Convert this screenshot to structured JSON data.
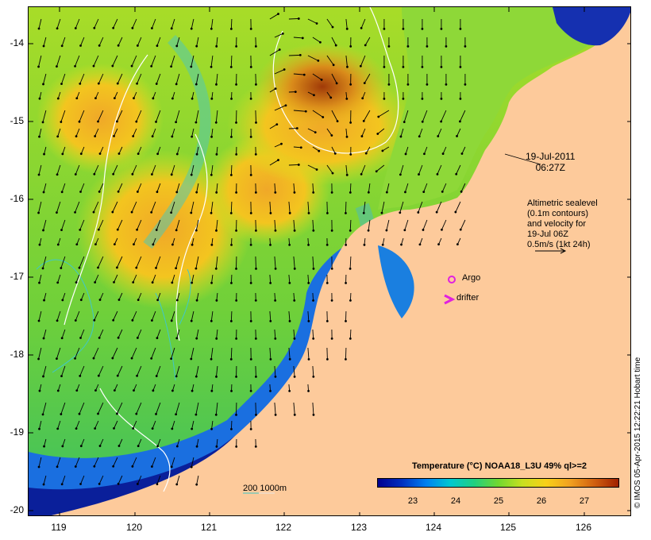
{
  "map": {
    "date": "19-Jul-2011",
    "time": "06:27Z",
    "legend_text": [
      "Altimetric sealevel",
      "(0.1m contours)",
      "and velocity for",
      "19-Jul 06Z",
      "0.5m/s (1kt 24h)"
    ],
    "argo_label": "Argo",
    "drifter_label": "drifter",
    "depth_label": "200  1000m",
    "credit": "© IMOS 05-Apr-2015 12:22:21 Hobart time",
    "colors": {
      "land": "#fdca9b",
      "argo": "#e020e0",
      "drifter": "#e020e0",
      "contour": "#ffffff",
      "isobath": "#40c8c8"
    }
  },
  "axes": {
    "lat_labels": [
      "-14",
      "-15",
      "-16",
      "-17",
      "-18",
      "-19",
      "-20"
    ],
    "lon_labels": [
      "119",
      "120",
      "121",
      "122",
      "123",
      "124",
      "125",
      "126"
    ]
  },
  "colorbar": {
    "title": "Temperature (°C) NOAA18_L3U 49% ql>=2",
    "ticks": [
      "23",
      "24",
      "25",
      "26",
      "27"
    ]
  }
}
